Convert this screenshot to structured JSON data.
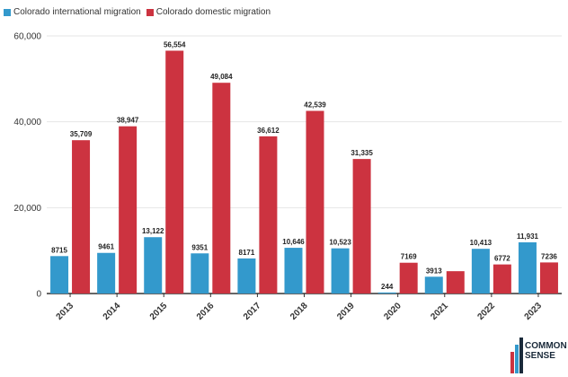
{
  "legend": {
    "international_label": "Colorado international migration",
    "domestic_label": "Colorado domestic migration"
  },
  "colors": {
    "international": "#3399cc",
    "domestic": "#cc3340",
    "grid": "#e6e6e6",
    "axis_text": "#333333"
  },
  "logo": {
    "line1": "COMMON",
    "line2": "SENSE"
  },
  "chart_data": {
    "type": "bar",
    "title": "",
    "xlabel": "",
    "ylabel": "",
    "ylim": [
      0,
      60000
    ],
    "yticks": [
      0,
      20000,
      40000,
      60000
    ],
    "ytick_labels": [
      "0",
      "20,000",
      "40,000",
      "60,000"
    ],
    "grid": true,
    "legend_position": "top-left",
    "categories": [
      "2013",
      "2014",
      "2015",
      "2016",
      "2017",
      "2018",
      "2019",
      "2020",
      "2021",
      "2022",
      "2023"
    ],
    "series": [
      {
        "name": "Colorado international migration",
        "values": [
          8715,
          9461,
          13122,
          9351,
          8171,
          10646,
          10523,
          244,
          3913,
          10413,
          11931
        ],
        "labels": [
          "8715",
          "9461",
          "13,122",
          "9351",
          "8171",
          "10,646",
          "10,523",
          "244",
          "3913",
          "10,413",
          "11,931"
        ]
      },
      {
        "name": "Colorado domestic migration",
        "values": [
          35709,
          38947,
          56554,
          49084,
          36612,
          42539,
          31335,
          7169,
          5200,
          6772,
          7236
        ],
        "labels": [
          "35,709",
          "38,947",
          "56,554",
          "49,084",
          "36,612",
          "42,539",
          "31,335",
          "7169",
          "",
          "6772",
          "7236"
        ]
      }
    ]
  }
}
